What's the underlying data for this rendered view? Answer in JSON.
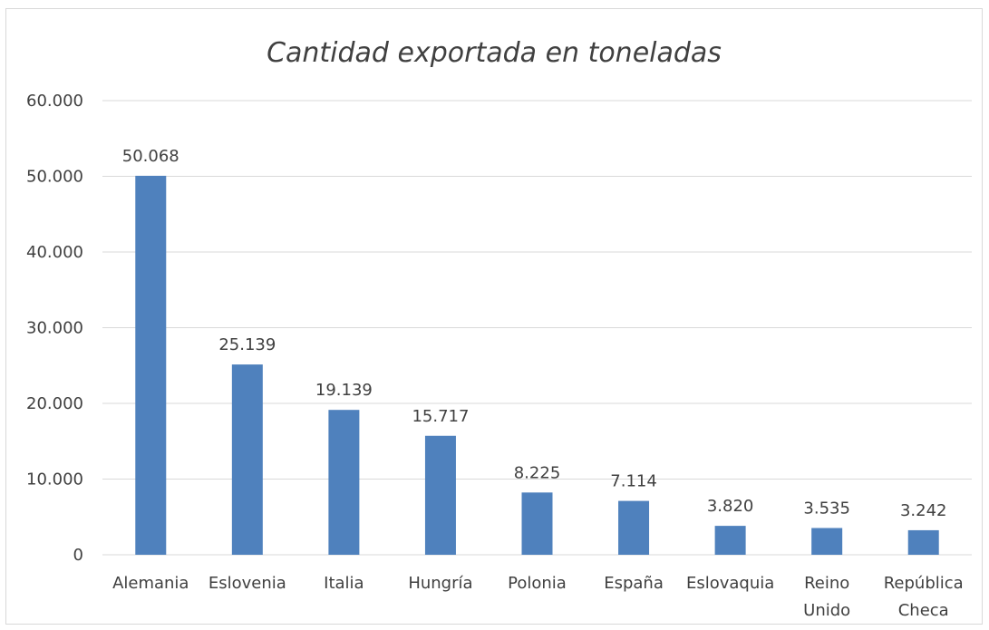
{
  "chart_data": {
    "type": "bar",
    "title": "Cantidad exportada en toneladas",
    "xlabel": "",
    "ylabel": "",
    "categories": [
      [
        "Alemania"
      ],
      [
        "Eslovenia"
      ],
      [
        "Italia"
      ],
      [
        "Hungría"
      ],
      [
        "Polonia"
      ],
      [
        "España"
      ],
      [
        "Eslovaquia"
      ],
      [
        "Reino",
        "Unido"
      ],
      [
        "República",
        "Checa"
      ]
    ],
    "values": [
      50068,
      25139,
      19139,
      15717,
      8225,
      7114,
      3820,
      3535,
      3242
    ],
    "value_labels": [
      "50.068",
      "25.139",
      "19.139",
      "15.717",
      "8.225",
      "7.114",
      "3.820",
      "3.535",
      "3.242"
    ],
    "ylim": [
      0,
      60000
    ],
    "yticks": [
      0,
      10000,
      20000,
      30000,
      40000,
      50000,
      60000
    ],
    "ytick_labels": [
      "0",
      "10.000",
      "20.000",
      "30.000",
      "40.000",
      "50.000",
      "60.000"
    ],
    "grid": true,
    "legend": "none",
    "bar_color": "#4f81bd",
    "grid_color": "#d9d9d9",
    "text_color": "#404040"
  }
}
